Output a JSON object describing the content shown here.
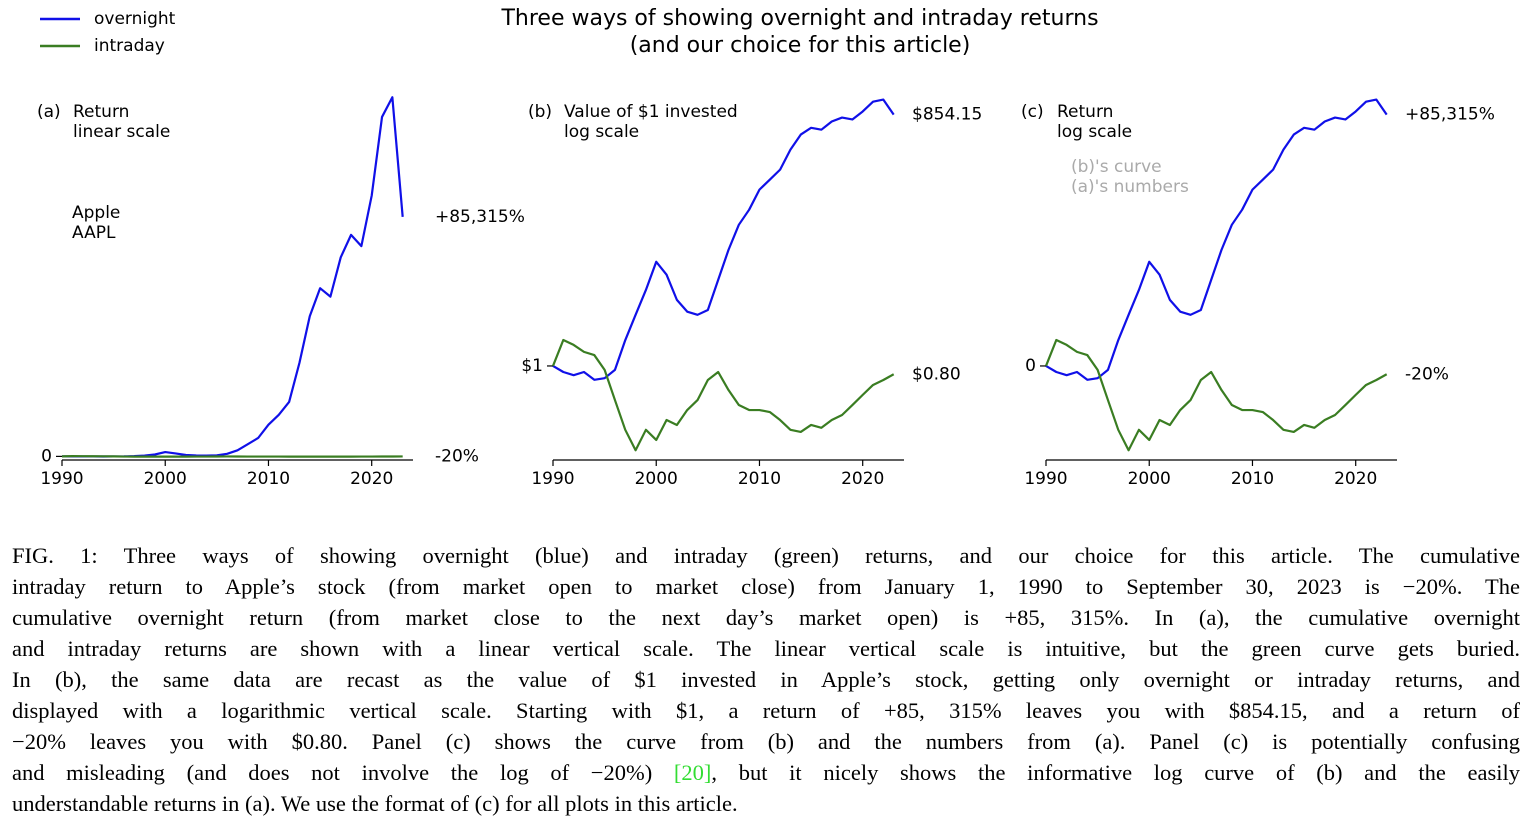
{
  "title": [
    "Three ways of showing overnight and intraday returns",
    "(and our choice for this article)"
  ],
  "chart_data": [
    {
      "type": "line",
      "panel_label": "(a)",
      "subtitle": [
        "Return",
        "linear scale"
      ],
      "annotation": [
        "Apple",
        "AAPL"
      ],
      "annotation_color": "#000000",
      "x": [
        1990,
        1991,
        1992,
        1993,
        1994,
        1995,
        1996,
        1997,
        1998,
        1999,
        2000,
        2001,
        2002,
        2003,
        2004,
        2005,
        2006,
        2007,
        2008,
        2009,
        2010,
        2011,
        2012,
        2013,
        2014,
        2015,
        2016,
        2017,
        2018,
        2019,
        2020,
        2021,
        2022,
        2023
      ],
      "xlim": [
        1990,
        2024
      ],
      "xticks": [
        1990,
        2000,
        2010,
        2020
      ],
      "ylim": [
        -2000,
        128000
      ],
      "yticks": [
        0
      ],
      "log_y": false,
      "series": [
        {
          "name": "overnight",
          "color": "#1010e8",
          "values": [
            0,
            -15,
            -22,
            -15,
            -31,
            -28,
            -10,
            100,
            295,
            670,
            1540,
            1060,
            490,
            330,
            295,
            350,
            910,
            2160,
            4330,
            6550,
            11300,
            14800,
            19400,
            33300,
            49900,
            59900,
            56900,
            70900,
            78900,
            74900,
            92900,
            120900,
            127900,
            85315
          ]
        },
        {
          "name": "intraday",
          "color": "#3a7d22",
          "values": [
            0,
            101,
            76,
            46,
            34,
            -10,
            -60,
            -82,
            -90,
            -82,
            -86,
            -77,
            -80,
            -69,
            -60,
            -31,
            -15,
            -48,
            -65,
            -69,
            -69,
            -71,
            -77,
            -82,
            -83,
            -80,
            -81,
            -77,
            -73,
            -65,
            -54,
            -40,
            -31,
            -20
          ]
        }
      ],
      "end_labels": [
        "+85,315%",
        "-20%"
      ]
    },
    {
      "type": "line",
      "panel_label": "(b)",
      "subtitle": [
        "Value of $1 invested",
        "log scale"
      ],
      "x": [
        1990,
        1991,
        1992,
        1993,
        1994,
        1995,
        1996,
        1997,
        1998,
        1999,
        2000,
        2001,
        2002,
        2003,
        2004,
        2005,
        2006,
        2007,
        2008,
        2009,
        2010,
        2011,
        2012,
        2013,
        2014,
        2015,
        2016,
        2017,
        2018,
        2019,
        2020,
        2021,
        2022,
        2023
      ],
      "xlim": [
        1990,
        2024
      ],
      "xticks": [
        1990,
        2000,
        2010,
        2020
      ],
      "ylim": [
        0.08,
        1300
      ],
      "yticks": [
        {
          "value": 1,
          "label": "$1"
        }
      ],
      "log_y": true,
      "series": [
        {
          "color": "#1010e8",
          "values": [
            1,
            0.85,
            0.78,
            0.85,
            0.69,
            0.72,
            0.9,
            2.0,
            3.95,
            7.7,
            16.4,
            11.6,
            5.9,
            4.3,
            3.95,
            4.5,
            10.1,
            22.6,
            44.3,
            66.5,
            114,
            149,
            195,
            334,
            500,
            600,
            570,
            710,
            790,
            750,
            930,
            1210,
            1280,
            854.15
          ]
        },
        {
          "color": "#3a7d22",
          "values": [
            1,
            2.01,
            1.76,
            1.46,
            1.34,
            0.9,
            0.4,
            0.18,
            0.104,
            0.18,
            0.137,
            0.234,
            0.205,
            0.306,
            0.4,
            0.686,
            0.85,
            0.524,
            0.35,
            0.306,
            0.306,
            0.29,
            0.234,
            0.18,
            0.17,
            0.205,
            0.19,
            0.234,
            0.268,
            0.35,
            0.46,
            0.6,
            0.686,
            0.8
          ]
        }
      ],
      "end_labels": [
        "$854.15",
        "$0.80"
      ]
    },
    {
      "type": "line",
      "panel_label": "(c)",
      "subtitle": [
        "Return",
        "log scale"
      ],
      "annotation": [
        "(b)'s curve",
        "(a)'s numbers"
      ],
      "annotation_color": "#aaaaaa",
      "x": [
        1990,
        1991,
        1992,
        1993,
        1994,
        1995,
        1996,
        1997,
        1998,
        1999,
        2000,
        2001,
        2002,
        2003,
        2004,
        2005,
        2006,
        2007,
        2008,
        2009,
        2010,
        2011,
        2012,
        2013,
        2014,
        2015,
        2016,
        2017,
        2018,
        2019,
        2020,
        2021,
        2022,
        2023
      ],
      "xlim": [
        1990,
        2024
      ],
      "xticks": [
        1990,
        2000,
        2010,
        2020
      ],
      "ylim": [
        0.08,
        1300
      ],
      "yticks": [
        {
          "value": 1,
          "label": "0"
        }
      ],
      "log_y": true,
      "series": [
        {
          "color": "#1010e8",
          "values": [
            1,
            0.85,
            0.78,
            0.85,
            0.69,
            0.72,
            0.9,
            2.0,
            3.95,
            7.7,
            16.4,
            11.6,
            5.9,
            4.3,
            3.95,
            4.5,
            10.1,
            22.6,
            44.3,
            66.5,
            114,
            149,
            195,
            334,
            500,
            600,
            570,
            710,
            790,
            750,
            930,
            1210,
            1280,
            854.15
          ]
        },
        {
          "color": "#3a7d22",
          "values": [
            1,
            2.01,
            1.76,
            1.46,
            1.34,
            0.9,
            0.4,
            0.18,
            0.104,
            0.18,
            0.137,
            0.234,
            0.205,
            0.306,
            0.4,
            0.686,
            0.85,
            0.524,
            0.35,
            0.306,
            0.306,
            0.29,
            0.234,
            0.18,
            0.17,
            0.205,
            0.19,
            0.234,
            0.268,
            0.35,
            0.46,
            0.6,
            0.686,
            0.8
          ]
        }
      ],
      "end_labels": [
        "+85,315%",
        "-20%"
      ]
    }
  ],
  "caption": {
    "lines": [
      "FIG. 1: Three ways of showing overnight (blue) and intraday (green) returns, and our choice for this article. The cumulative",
      "intraday return to Apple’s stock (from market open to market close) from January 1, 1990 to September 30, 2023 is −20%. The",
      "cumulative overnight return (from market close to the next day’s market open) is +85, 315%. In (a), the cumulative overnight",
      "and intraday returns are shown with a linear vertical scale. The linear vertical scale is intuitive, but the green curve gets buried.",
      "In (b), the same data are recast as the value of $1 invested in Apple’s stock, getting only overnight or intraday returns, and",
      "displayed with a logarithmic vertical scale. Starting with $1, a return of +85, 315% leaves you with $854.15, and a return of",
      "−20% leaves you with $0.80. Panel (c) shows the curve from (b) and the numbers from (a). Panel (c) is potentially confusing"
    ],
    "citation_line": [
      "and misleading (and does not involve the log of −20%) ",
      "[20]",
      ", but it nicely shows the informative log curve of (b) and the easily"
    ],
    "final_line": "understandable returns in (a). We use the format of (c) for all plots in this article."
  }
}
